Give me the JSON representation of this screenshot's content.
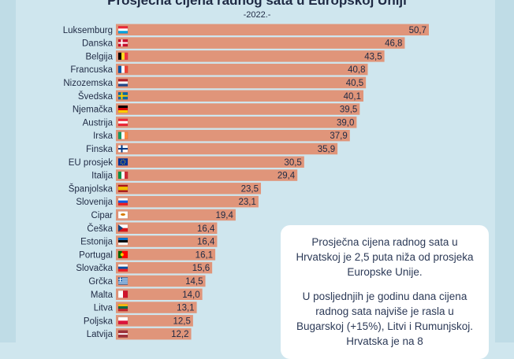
{
  "page": {
    "title": "Prosječna cijena radnog sata u Europskoj Uniji",
    "subtitle": "-2022.-"
  },
  "info": {
    "paragraph1": "Prosječna cijena radnog sata u Hrvatskoj je 2,5 puta niža od prosjeka Europske Unije.",
    "paragraph2": "U posljednjih je godinu dana cijena radnog sata najviše je rasla u Bugarskoj (+15%), Litvi i Rumunjskoj. Hrvatska je na 8"
  },
  "colors": {
    "bar": "#e0957a",
    "background": "#cfe6ee",
    "text": "#1f2a44"
  },
  "chart_data": {
    "type": "bar",
    "orientation": "horizontal",
    "title": "Prosječna cijena radnog sata u Europskoj Uniji",
    "subtitle": "-2022.-",
    "xlim": [
      0,
      50.7
    ],
    "grid": false,
    "categories": [
      "Luksemburg",
      "Danska",
      "Belgija",
      "Francuska",
      "Nizozemska",
      "Švedska",
      "Njemačka",
      "Austrija",
      "Irska",
      "Finska",
      "EU prosjek",
      "Italija",
      "Španjolska",
      "Slovenija",
      "Cipar",
      "Češka",
      "Estonija",
      "Portugal",
      "Slovačka",
      "Grčka",
      "Malta",
      "Litva",
      "Poljska",
      "Latvija"
    ],
    "values": [
      50.7,
      46.8,
      43.5,
      40.8,
      40.5,
      40.1,
      39.5,
      39.0,
      37.9,
      35.9,
      30.5,
      29.4,
      23.5,
      23.1,
      19.4,
      16.4,
      16.4,
      16.1,
      15.6,
      14.5,
      14.0,
      13.1,
      12.5,
      12.2
    ],
    "value_labels": [
      "50,7",
      "46,8",
      "43,5",
      "40,8",
      "40,5",
      "40,1",
      "39,5",
      "39,0",
      "37,9",
      "35,9",
      "30,5",
      "29,4",
      "23,5",
      "23,1",
      "19,4",
      "16,4",
      "16,4",
      "16,1",
      "15,6",
      "14,5",
      "14,0",
      "13,1",
      "12,5",
      "12,2"
    ],
    "flag_icons": [
      "flag-luxembourg-icon",
      "flag-denmark-icon",
      "flag-belgium-icon",
      "flag-france-icon",
      "flag-netherlands-icon",
      "flag-sweden-icon",
      "flag-germany-icon",
      "flag-austria-icon",
      "flag-ireland-icon",
      "flag-finland-icon",
      "flag-eu-icon",
      "flag-italy-icon",
      "flag-spain-icon",
      "flag-slovenia-icon",
      "flag-cyprus-icon",
      "flag-czechia-icon",
      "flag-estonia-icon",
      "flag-portugal-icon",
      "flag-slovakia-icon",
      "flag-greece-icon",
      "flag-malta-icon",
      "flag-lithuania-icon",
      "flag-poland-icon",
      "flag-latvia-icon"
    ]
  }
}
